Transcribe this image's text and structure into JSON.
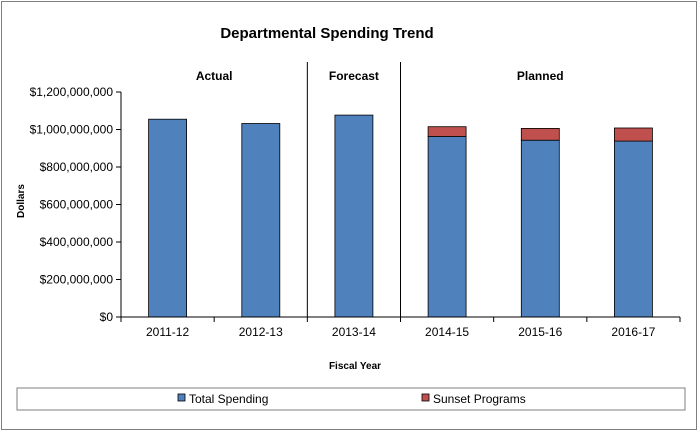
{
  "chart_data": {
    "type": "bar",
    "stacked": true,
    "title": "Departmental Spending Trend",
    "xlabel": "Fiscal Year",
    "ylabel": "Dollars",
    "categories": [
      "2011-12",
      "2012-13",
      "2013-14",
      "2014-15",
      "2015-16",
      "2016-17"
    ],
    "series": [
      {
        "name": "Total Spending",
        "color": "#4f81bd",
        "values": [
          1055000000,
          1032000000,
          1077000000,
          963000000,
          943000000,
          938000000
        ]
      },
      {
        "name": "Sunset Programs",
        "color": "#c0504d",
        "values": [
          0,
          0,
          0,
          52000000,
          63000000,
          70000000
        ]
      }
    ],
    "sections": [
      {
        "label": "Actual",
        "start": 0,
        "end": 1
      },
      {
        "label": "Forecast",
        "start": 2,
        "end": 2
      },
      {
        "label": "Planned",
        "start": 3,
        "end": 5
      }
    ],
    "ylim": [
      0,
      1200000000
    ],
    "yticks": [
      {
        "value": 0,
        "label": "$0"
      },
      {
        "value": 200000000,
        "label": "$200,000,000"
      },
      {
        "value": 400000000,
        "label": "$400,000,000"
      },
      {
        "value": 600000000,
        "label": "$600,000,000"
      },
      {
        "value": 800000000,
        "label": "$800,000,000"
      },
      {
        "value": 1000000000,
        "label": "$1,000,000,000"
      },
      {
        "value": 1200000000,
        "label": "$1,200,000,000"
      }
    ],
    "grid": false,
    "legend": "bottom"
  }
}
